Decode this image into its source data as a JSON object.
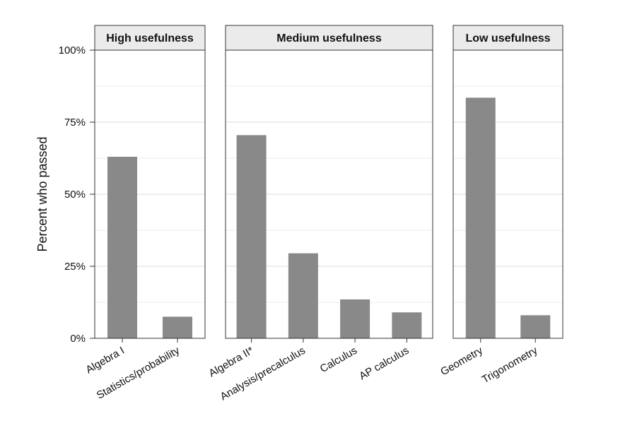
{
  "chart_data": {
    "type": "bar",
    "ylabel": "Percent who passed",
    "xlabel": "",
    "ylim": [
      0,
      100
    ],
    "y_ticks": [
      {
        "value": 0,
        "label": "0%"
      },
      {
        "value": 25,
        "label": "25%"
      },
      {
        "value": 50,
        "label": "50%"
      },
      {
        "value": 75,
        "label": "75%"
      },
      {
        "value": 100,
        "label": "100%"
      }
    ],
    "grid": true,
    "bar_color": "#898989",
    "panel_strip_color": "#ebebeb",
    "panels": [
      {
        "title": "High usefulness",
        "categories": [
          "Algebra I",
          "Statistics/probability"
        ],
        "values": [
          63,
          7.5
        ]
      },
      {
        "title": "Medium usefulness",
        "categories": [
          "Algebra II*",
          "Analysis/precalculus",
          "Calculus",
          "AP calculus"
        ],
        "values": [
          70.5,
          29.5,
          13.5,
          9
        ]
      },
      {
        "title": "Low usefulness",
        "categories": [
          "Geometry",
          "Trigonometry"
        ],
        "values": [
          83.5,
          8
        ]
      }
    ]
  }
}
